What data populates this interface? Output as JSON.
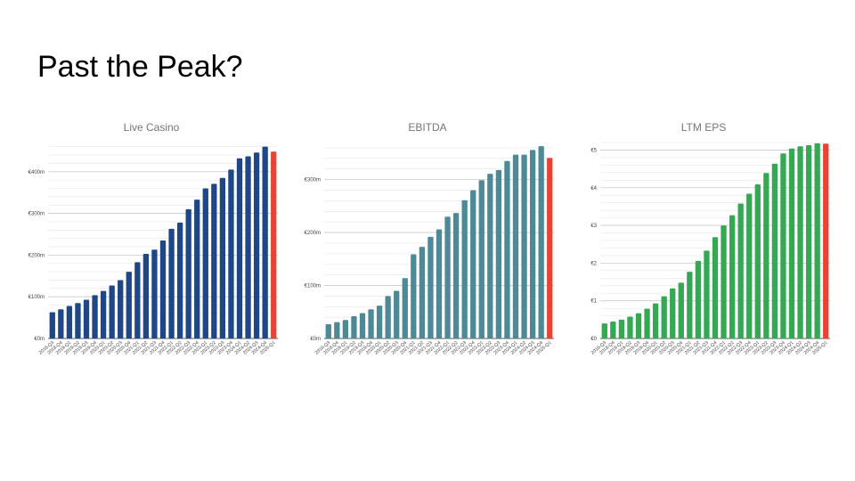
{
  "slide": {
    "title": "Past the Peak?"
  },
  "colors": {
    "live_casino": "#1f4788",
    "ebitda": "#4d8a96",
    "ltm_eps": "#34a853",
    "latest": "#ea4335",
    "gridline": "#e6e6e6"
  },
  "chart_data": [
    {
      "type": "bar",
      "title": "Live Casino",
      "categories": [
        "2018-Q3",
        "2018-Q4",
        "2019-Q1",
        "2019-Q2",
        "2019-Q3",
        "2019-Q4",
        "2020-Q1",
        "2020-Q2",
        "2020-Q3",
        "2020-Q4",
        "2021-Q1",
        "2021-Q2",
        "2021-Q3",
        "2021-Q4",
        "2022-Q1",
        "2022-Q2",
        "2022-Q3",
        "2022-Q4",
        "2023-Q1",
        "2023-Q2",
        "2023-Q3",
        "2023-Q4",
        "2024-Q1",
        "2024-Q2",
        "2024-Q3",
        "2024-Q4",
        "2025-Q1"
      ],
      "values": [
        63,
        70,
        78,
        85,
        93,
        104,
        114,
        127,
        140,
        160,
        183,
        203,
        213,
        235,
        263,
        278,
        310,
        333,
        360,
        371,
        385,
        405,
        432,
        437,
        446,
        460,
        448
      ],
      "ylim": [
        0,
        470
      ],
      "yticks": [
        0,
        100,
        200,
        300,
        400
      ],
      "ytick_labels": [
        "€0m",
        "€100m",
        "€200m",
        "€300m",
        "€400m"
      ],
      "minor_step": 20,
      "grid": true,
      "xlabel": "",
      "ylabel": "",
      "bar_color": "#1f4788",
      "highlight_last_color": "#ea4335"
    },
    {
      "type": "bar",
      "title": "EBITDA",
      "categories": [
        "2018-Q3",
        "2018-Q4",
        "2019-Q1",
        "2019-Q2",
        "2019-Q3",
        "2019-Q4",
        "2020-Q1",
        "2020-Q2",
        "2020-Q3",
        "2020-Q4",
        "2021-Q1",
        "2021-Q2",
        "2021-Q3",
        "2021-Q4",
        "2022-Q1",
        "2022-Q2",
        "2022-Q3",
        "2022-Q4",
        "2023-Q1",
        "2023-Q2",
        "2023-Q3",
        "2023-Q4",
        "2024-Q1",
        "2024-Q2",
        "2024-Q3",
        "2024-Q4",
        "2025-Q1"
      ],
      "values": [
        27,
        31,
        35,
        42,
        48,
        55,
        62,
        80,
        90,
        114,
        159,
        173,
        192,
        206,
        230,
        237,
        261,
        280,
        299,
        311,
        318,
        335,
        347,
        347,
        356,
        363,
        341
      ],
      "ylim": [
        0,
        370
      ],
      "yticks": [
        0,
        100,
        200,
        300
      ],
      "ytick_labels": [
        "€0m",
        "€100m",
        "€200m",
        "€300m"
      ],
      "minor_step": 20,
      "grid": true,
      "xlabel": "",
      "ylabel": "",
      "bar_color": "#4d8a96",
      "highlight_last_color": "#ea4335"
    },
    {
      "type": "bar",
      "title": "LTM EPS",
      "categories": [
        "2018-Q3",
        "2018-Q4",
        "2019-Q1",
        "2019-Q2",
        "2019-Q3",
        "2019-Q4",
        "2020-Q1",
        "2020-Q2",
        "2020-Q3",
        "2020-Q4",
        "2021-Q1",
        "2021-Q2",
        "2021-Q3",
        "2021-Q4",
        "2022-Q1",
        "2022-Q2",
        "2022-Q3",
        "2022-Q4",
        "2023-Q1",
        "2023-Q2",
        "2023-Q3",
        "2023-Q4",
        "2024-Q1",
        "2024-Q2",
        "2024-Q3",
        "2024-Q4",
        "2025-Q1"
      ],
      "values": [
        0.4,
        0.45,
        0.5,
        0.58,
        0.67,
        0.79,
        0.93,
        1.12,
        1.33,
        1.48,
        1.77,
        2.06,
        2.33,
        2.69,
        3.0,
        3.27,
        3.58,
        3.84,
        4.09,
        4.39,
        4.64,
        4.91,
        5.04,
        5.1,
        5.13,
        5.18,
        5.17
      ],
      "ylim": [
        0,
        5.2
      ],
      "yticks": [
        0,
        1,
        2,
        3,
        4,
        5
      ],
      "ytick_labels": [
        "€0",
        "€1",
        "€2",
        "€3",
        "€4",
        "€5"
      ],
      "minor_step": 0.2,
      "grid": true,
      "xlabel": "",
      "ylabel": "",
      "bar_color": "#34a853",
      "highlight_last_color": "#ea4335"
    }
  ]
}
